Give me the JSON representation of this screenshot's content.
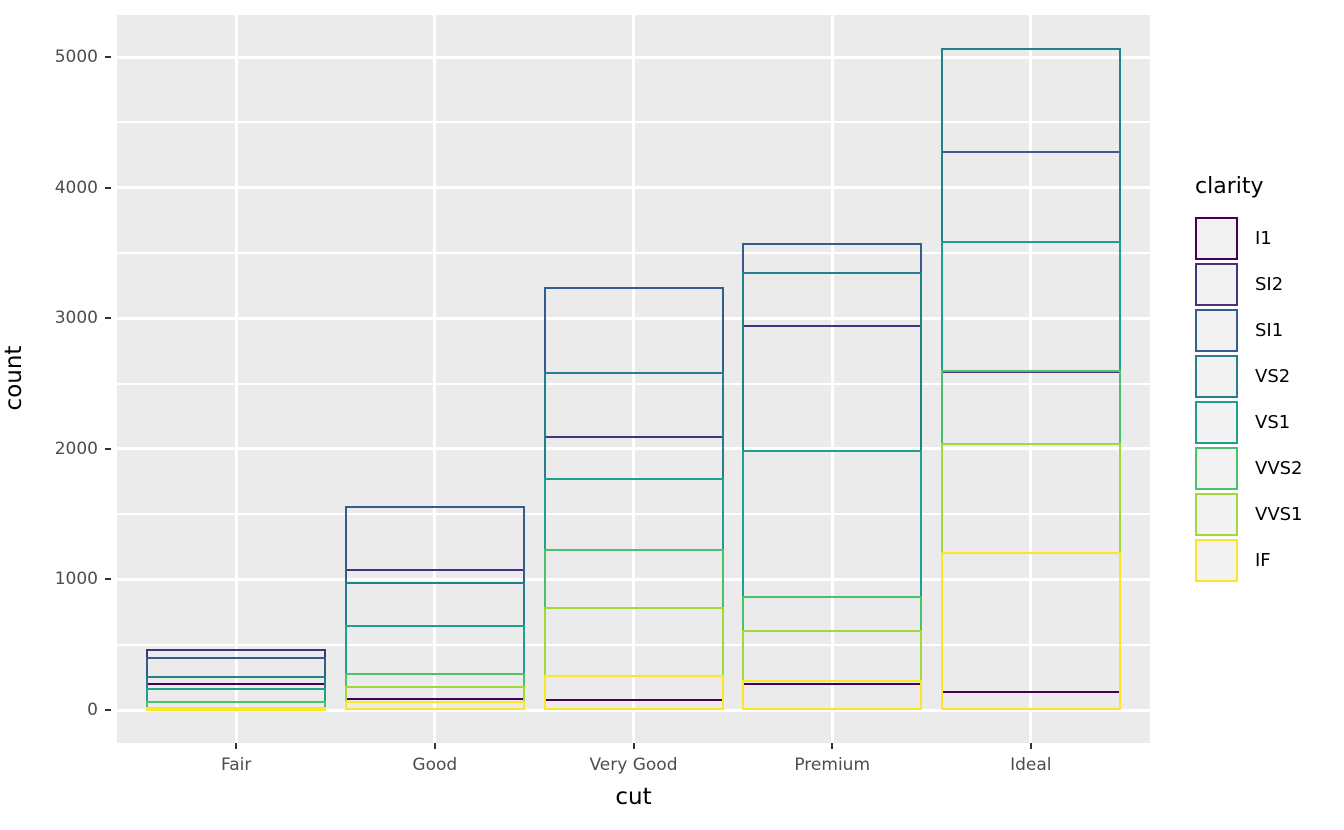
{
  "figure": {
    "background": "#FFFFFF",
    "panel_background": "#EBEBEB",
    "grid_color": "#FFFFFF",
    "axis_text_color": "#4D4D4D",
    "axis_title_color": "#000000",
    "tick_mark_color": "#333333",
    "legend_key_fill": "#F2F2F2"
  },
  "chart_data": {
    "type": "bar",
    "subtype": "outlined overlapping bars (fill none, position identity), ggplot2 style",
    "title": "",
    "xlabel": "cut",
    "ylabel": "count",
    "categories": [
      "Fair",
      "Good",
      "Very Good",
      "Premium",
      "Ideal"
    ],
    "y_ticks": [
      0,
      1000,
      2000,
      3000,
      4000,
      5000
    ],
    "y_minor_ticks": [
      500,
      1500,
      2500,
      3500,
      4500
    ],
    "ylim": [
      -253.6,
      5324.6
    ],
    "grid": "white major+minor horizontal lines, white major vertical lines at categories, on gray panel",
    "legend_title": "clarity",
    "legend_position": "right",
    "series": [
      {
        "name": "I1",
        "color": "#440154",
        "values": [
          210,
          96,
          84,
          205,
          146
        ]
      },
      {
        "name": "SI2",
        "color": "#46327E",
        "values": [
          466,
          1081,
          2100,
          2949,
          2598
        ]
      },
      {
        "name": "SI1",
        "color": "#365C8D",
        "values": [
          408,
          1560,
          3240,
          3575,
          4282
        ]
      },
      {
        "name": "VS2",
        "color": "#277F8E",
        "values": [
          261,
          978,
          2591,
          3357,
          5071
        ]
      },
      {
        "name": "VS1",
        "color": "#1FA187",
        "values": [
          170,
          648,
          1775,
          1989,
          3589
        ]
      },
      {
        "name": "VVS2",
        "color": "#4AC16D",
        "values": [
          69,
          286,
          1235,
          870,
          2606
        ]
      },
      {
        "name": "VVS1",
        "color": "#A0DA39",
        "values": [
          17,
          186,
          789,
          616,
          2047
        ]
      },
      {
        "name": "IF",
        "color": "#FDE725",
        "values": [
          9,
          71,
          268,
          230,
          1212
        ]
      }
    ]
  }
}
